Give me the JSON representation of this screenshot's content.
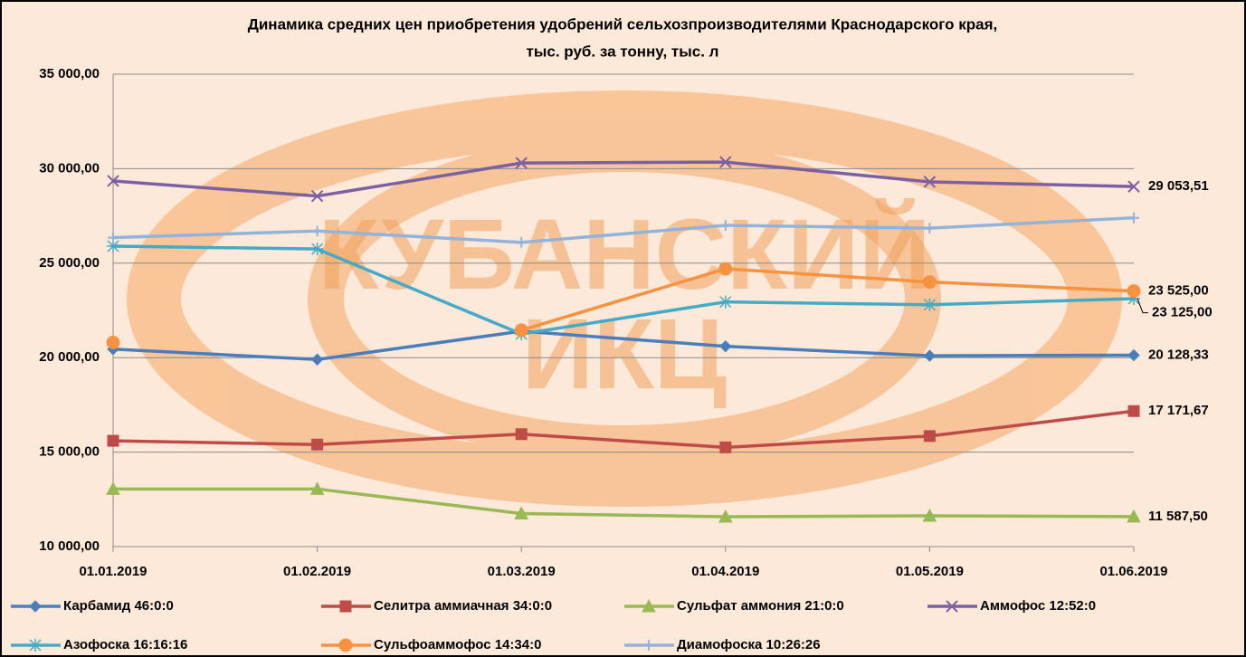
{
  "chart_data": {
    "type": "line",
    "title": "Динамика средних цен приобретения удобрений сельхозпроизводителями Краснодарского края,",
    "subtitle": "тыс. руб. за тонну, тыс. л",
    "watermark": [
      "КУБАНСКИЙ",
      "ИКЦ"
    ],
    "categories": [
      "01.01.2019",
      "01.02.2019",
      "01.03.2019",
      "01.04.2019",
      "01.05.2019",
      "01.06.2019"
    ],
    "ylim": [
      10000,
      35000
    ],
    "yticks": [
      {
        "value": 10000,
        "label": "10 000,00"
      },
      {
        "value": 15000,
        "label": "15 000,00"
      },
      {
        "value": 20000,
        "label": "20 000,00"
      },
      {
        "value": 25000,
        "label": "25 000,00"
      },
      {
        "value": 30000,
        "label": "30 000,00"
      },
      {
        "value": 35000,
        "label": "35 000,00"
      }
    ],
    "grid": true,
    "legend": "bottom",
    "series": [
      {
        "name": "Карбамид 46:0:0",
        "color": "#4a7ebb",
        "marker": "diamond",
        "values": [
          20450,
          19900,
          21400,
          20600,
          20100,
          20128.33
        ],
        "value_labels": [
          null,
          null,
          null,
          null,
          null,
          "20 128,33"
        ]
      },
      {
        "name": "Селитра аммиачная 34:0:0",
        "color": "#be4b48",
        "marker": "square",
        "values": [
          15600,
          15400,
          15950,
          15250,
          15850,
          17171.67
        ],
        "value_labels": [
          null,
          null,
          null,
          null,
          null,
          "17 171,67"
        ]
      },
      {
        "name": "Сульфат аммония 21:0:0",
        "color": "#98b954",
        "marker": "triangle",
        "values": [
          13050,
          13050,
          11750,
          11580,
          11630,
          11587.5
        ],
        "value_labels": [
          null,
          null,
          null,
          null,
          null,
          "11 587,50"
        ]
      },
      {
        "name": "Аммофос 12:52:0",
        "color": "#7d60a0",
        "marker": "x",
        "values": [
          29350,
          28550,
          30300,
          30350,
          29300,
          29053.51
        ],
        "value_labels": [
          null,
          null,
          null,
          null,
          null,
          "29 053,51"
        ]
      },
      {
        "name": "Азофоска 16:16:16",
        "color": "#46aac5",
        "marker": "star",
        "values": [
          25900,
          25750,
          21250,
          22950,
          22800,
          23125
        ],
        "value_labels": [
          null,
          null,
          null,
          null,
          null,
          "23 125,00"
        ]
      },
      {
        "name": "Сульфоаммофос 14:34:0",
        "color": "#f69240",
        "marker": "circle",
        "values": [
          20800,
          null,
          21450,
          24700,
          24000,
          23525
        ],
        "value_labels": [
          null,
          null,
          null,
          null,
          null,
          "23 525,00"
        ]
      },
      {
        "name": "Диамофоска 10:26:26",
        "color": "#93b3d8",
        "marker": "plus",
        "values": [
          26350,
          26700,
          26100,
          27000,
          26850,
          27400
        ],
        "value_labels": [
          null,
          null,
          null,
          null,
          null,
          null
        ]
      }
    ]
  }
}
